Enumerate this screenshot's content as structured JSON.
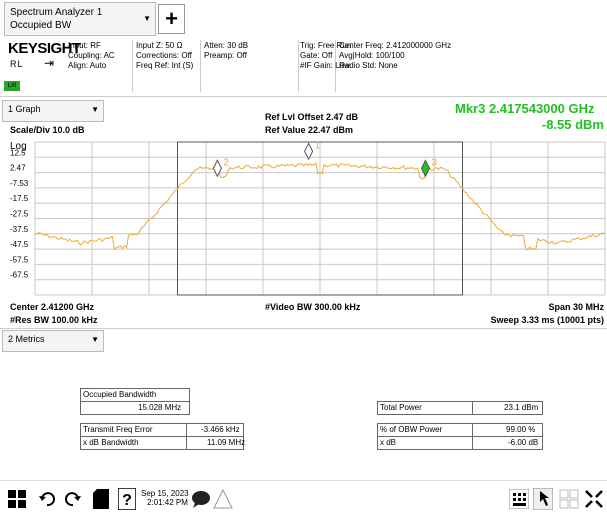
{
  "mode": {
    "line1": "Spectrum Analyzer 1",
    "line2": "Occupied BW"
  },
  "brand": "KEYSIGHT",
  "rl_label": "RL",
  "lxi": "LXI",
  "settings": {
    "col1": [
      "Input: RF",
      "Coupling: AC",
      "Align: Auto"
    ],
    "col2": [
      "Input Z: 50 Ω",
      "Corrections: Off",
      "Freq Ref: Int (S)"
    ],
    "col3": [
      "Atten: 30 dB",
      "Preamp: Off"
    ],
    "col4": [
      "Trig: Free Run",
      "Gate: Off",
      "#IF Gain: Low"
    ],
    "col5": [
      "Center Freq: 2.412000000 GHz",
      "Avg|Hold: 100/100",
      "Radio Std: None"
    ]
  },
  "graph": {
    "selector": "1 Graph",
    "scale_div": "Scale/Div 10.0 dB",
    "log": "Log",
    "ref_offset": "Ref Lvl Offset 2.47 dB",
    "ref_value": "Ref Value 22.47 dBm",
    "marker_freq": "Mkr3  2.417543000 GHz",
    "marker_level": "-8.55 dBm",
    "y_ticks": [
      "12.5",
      "2.47",
      "-7.53",
      "-17.5",
      "-27.5",
      "-37.5",
      "-47.5",
      "-57.5",
      "-67.5"
    ],
    "center": "Center 2.41200 GHz",
    "res_bw": "#Res BW 100.00 kHz",
    "video_bw": "#Video BW 300.00 kHz",
    "span": "Span 30 MHz",
    "sweep": "Sweep 3.33 ms (10001 pts)",
    "markers": [
      "1",
      "2",
      "3"
    ],
    "trace_color": "#f0a830",
    "marker_active_color": "#22c022"
  },
  "metrics": {
    "selector": "2 Metrics",
    "obw_label": "Occupied Bandwidth",
    "obw_value": "15.028 MHz",
    "tfe_label": "Transmit Freq Error",
    "tfe_value": "-3.466 kHz",
    "xdb_bw_label": "x dB Bandwidth",
    "xdb_bw_value": "11.09 MHz",
    "total_power_label": "Total Power",
    "total_power_value": "23.1 dBm",
    "obw_pct_label": "% of OBW Power",
    "obw_pct_value": "99.00 %",
    "xdb_label": "x dB",
    "xdb_value": "-6.00 dB"
  },
  "taskbar": {
    "date": "Sep 15, 2023",
    "time": "2:01:42 PM"
  }
}
